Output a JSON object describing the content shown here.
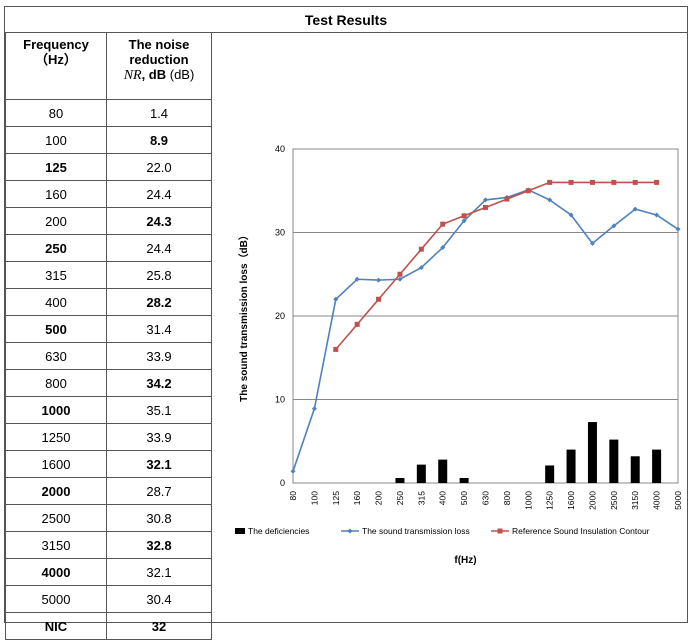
{
  "title": "Test Results",
  "table": {
    "header_freq": "Frequency\n（Hz）",
    "header_nr_line1": "The noise",
    "header_nr_line2": "reduction",
    "header_nr_symbol": "NR",
    "header_nr_unit_bold": ", dB",
    "header_nr_unit": " (dB)",
    "rows": [
      {
        "freq": "80",
        "nr": "1.4",
        "freq_bold": false,
        "nr_bold": false
      },
      {
        "freq": "100",
        "nr": "8.9",
        "freq_bold": false,
        "nr_bold": true
      },
      {
        "freq": "125",
        "nr": "22.0",
        "freq_bold": true,
        "nr_bold": false
      },
      {
        "freq": "160",
        "nr": "24.4",
        "freq_bold": false,
        "nr_bold": false
      },
      {
        "freq": "200",
        "nr": "24.3",
        "freq_bold": false,
        "nr_bold": true
      },
      {
        "freq": "250",
        "nr": "24.4",
        "freq_bold": true,
        "nr_bold": false
      },
      {
        "freq": "315",
        "nr": "25.8",
        "freq_bold": false,
        "nr_bold": false
      },
      {
        "freq": "400",
        "nr": "28.2",
        "freq_bold": false,
        "nr_bold": true
      },
      {
        "freq": "500",
        "nr": "31.4",
        "freq_bold": true,
        "nr_bold": false
      },
      {
        "freq": "630",
        "nr": "33.9",
        "freq_bold": false,
        "nr_bold": false
      },
      {
        "freq": "800",
        "nr": "34.2",
        "freq_bold": false,
        "nr_bold": true
      },
      {
        "freq": "1000",
        "nr": "35.1",
        "freq_bold": true,
        "nr_bold": false
      },
      {
        "freq": "1250",
        "nr": "33.9",
        "freq_bold": false,
        "nr_bold": false
      },
      {
        "freq": "1600",
        "nr": "32.1",
        "freq_bold": false,
        "nr_bold": true
      },
      {
        "freq": "2000",
        "nr": "28.7",
        "freq_bold": true,
        "nr_bold": false
      },
      {
        "freq": "2500",
        "nr": "30.8",
        "freq_bold": false,
        "nr_bold": false
      },
      {
        "freq": "3150",
        "nr": "32.8",
        "freq_bold": false,
        "nr_bold": true
      },
      {
        "freq": "4000",
        "nr": "32.1",
        "freq_bold": true,
        "nr_bold": false
      },
      {
        "freq": "5000",
        "nr": "30.4",
        "freq_bold": false,
        "nr_bold": false
      },
      {
        "freq": "NIC",
        "nr": "32",
        "freq_bold": true,
        "nr_bold": true
      }
    ]
  },
  "chart_data": {
    "type": "line",
    "categories": [
      "80",
      "100",
      "125",
      "160",
      "200",
      "250",
      "315",
      "400",
      "500",
      "630",
      "800",
      "1000",
      "1250",
      "1600",
      "2000",
      "2500",
      "3150",
      "4000",
      "5000"
    ],
    "ylabel": "The sound transmission loss（dB）",
    "xlabel": "f(Hz)",
    "ylim": [
      0,
      40
    ],
    "yticks": [
      0,
      10,
      20,
      30,
      40
    ],
    "grid": true,
    "legend_position": "bottom",
    "series": [
      {
        "name": "The deficiencies",
        "kind": "bar",
        "color": "#000000",
        "values": [
          null,
          null,
          null,
          null,
          null,
          0.6,
          2.2,
          2.8,
          0.6,
          null,
          null,
          null,
          2.1,
          4.0,
          7.3,
          5.2,
          3.2,
          4.0,
          null
        ]
      },
      {
        "name": "The sound transmission loss",
        "kind": "line",
        "color": "#4f81bd",
        "values": [
          1.4,
          8.9,
          22.0,
          24.4,
          24.3,
          24.4,
          25.8,
          28.2,
          31.4,
          33.9,
          34.2,
          35.1,
          33.9,
          32.1,
          28.7,
          30.8,
          32.8,
          32.1,
          30.4
        ]
      },
      {
        "name": "Reference Sound Insulation Contour",
        "kind": "line",
        "color": "#c0504d",
        "values": [
          null,
          null,
          16,
          19,
          22,
          25,
          28,
          31,
          32,
          33,
          34,
          35,
          36,
          36,
          36,
          36,
          36,
          36,
          null
        ]
      }
    ]
  }
}
